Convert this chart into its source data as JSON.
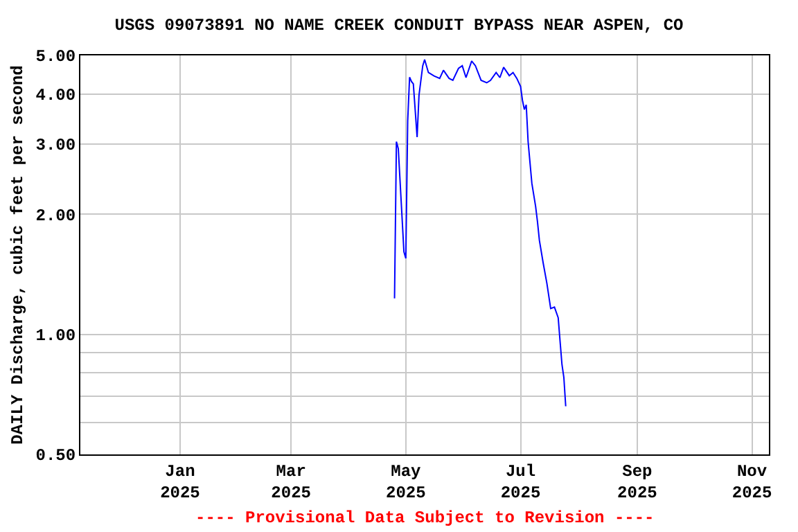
{
  "chart_data": {
    "type": "line",
    "title": "USGS 09073891 NO NAME CREEK CONDUIT BYPASS NEAR ASPEN, CO",
    "ylabel": "DAILY Discharge, cubic feet per second",
    "annotations": [
      "---- Provisional Data Subject to Revision ----"
    ],
    "x": [
      "2025-04-25",
      "2025-04-26",
      "2025-04-27",
      "2025-04-30",
      "2025-05-01",
      "2025-05-02",
      "2025-05-03",
      "2025-05-04",
      "2025-05-05",
      "2025-05-07",
      "2025-05-08",
      "2025-05-10",
      "2025-05-11",
      "2025-05-13",
      "2025-05-16",
      "2025-05-19",
      "2025-05-21",
      "2025-05-24",
      "2025-05-26",
      "2025-05-29",
      "2025-05-31",
      "2025-06-02",
      "2025-06-05",
      "2025-06-07",
      "2025-06-10",
      "2025-06-13",
      "2025-06-15",
      "2025-06-18",
      "2025-06-20",
      "2025-06-22",
      "2025-06-25",
      "2025-06-27",
      "2025-06-29",
      "2025-07-01",
      "2025-07-02",
      "2025-07-03",
      "2025-07-04",
      "2025-07-05",
      "2025-07-07",
      "2025-07-09",
      "2025-07-10",
      "2025-07-11",
      "2025-07-13",
      "2025-07-15",
      "2025-07-17",
      "2025-07-19",
      "2025-07-21",
      "2025-07-22",
      "2025-07-23",
      "2025-07-24",
      "2025-07-25"
    ],
    "series": [
      {
        "color": "#0000ff",
        "values": [
          1.23,
          3.04,
          2.92,
          1.61,
          1.55,
          3.43,
          4.41,
          4.3,
          4.24,
          3.12,
          3.97,
          4.71,
          4.88,
          4.53,
          4.44,
          4.38,
          4.59,
          4.38,
          4.33,
          4.64,
          4.71,
          4.4,
          4.84,
          4.71,
          4.33,
          4.27,
          4.33,
          4.53,
          4.4,
          4.67,
          4.45,
          4.53,
          4.38,
          4.18,
          3.86,
          3.66,
          3.76,
          3.04,
          2.39,
          2.09,
          1.91,
          1.72,
          1.51,
          1.34,
          1.16,
          1.17,
          1.1,
          0.96,
          0.84,
          0.78,
          0.66
        ]
      }
    ],
    "log": true,
    "xlim": [
      "2024-11-09",
      "2025-11-10"
    ],
    "xticks": [
      {
        "value": "2025-01-01",
        "label": "Jan\n2025"
      },
      {
        "value": "2025-03-01",
        "label": "Mar\n2025"
      },
      {
        "value": "2025-05-01",
        "label": "May\n2025"
      },
      {
        "value": "2025-07-01",
        "label": "Jul\n2025"
      },
      {
        "value": "2025-09-01",
        "label": "Sep\n2025"
      },
      {
        "value": "2025-11-01",
        "label": "Nov\n2025"
      }
    ],
    "ylim": [
      0.5,
      5
    ],
    "yticks": [
      {
        "value": 0.5,
        "label": "0.50"
      },
      {
        "value": 0.6,
        "label": null
      },
      {
        "value": 0.7,
        "label": null
      },
      {
        "value": 0.8,
        "label": null
      },
      {
        "value": 0.9,
        "label": null
      },
      {
        "value": 1,
        "label": "1.00"
      },
      {
        "value": 2,
        "label": "2.00"
      },
      {
        "value": 3,
        "label": "3.00"
      },
      {
        "value": 4,
        "label": "4.00"
      },
      {
        "value": 5,
        "label": "5.00"
      }
    ],
    "grid": true,
    "line_style": "solid",
    "marker": "none"
  }
}
